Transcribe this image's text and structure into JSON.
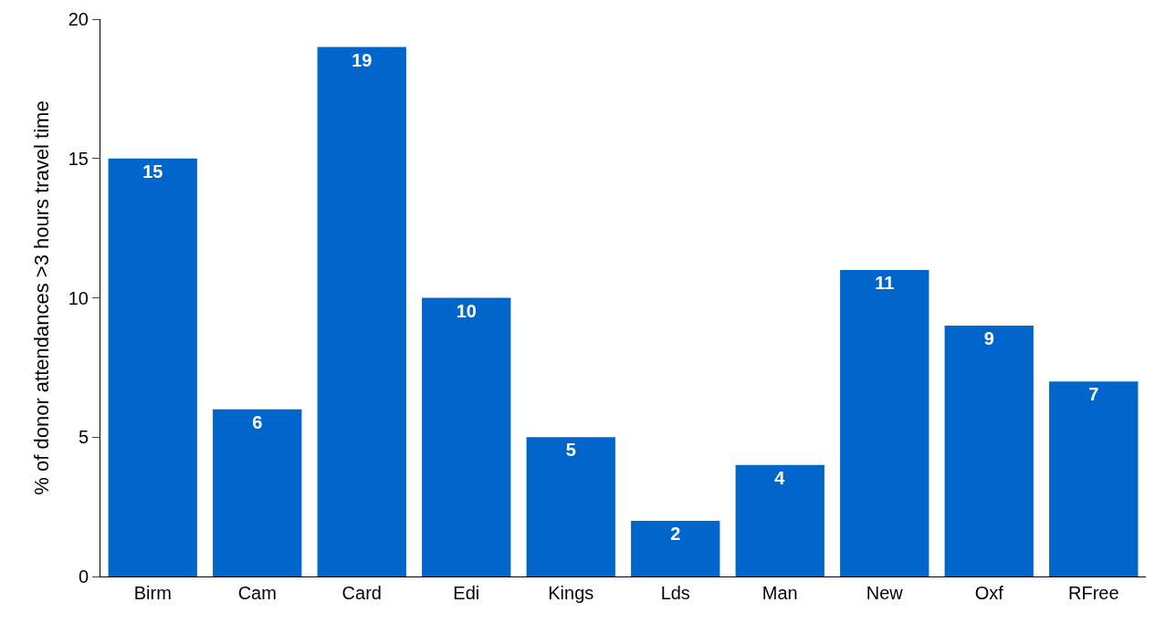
{
  "chart_data": {
    "type": "bar",
    "ylabel": "% of donor attendances >3 hours travel time",
    "categories": [
      "Birm",
      "Cam",
      "Card",
      "Edi",
      "Kings",
      "Lds",
      "Man",
      "New",
      "Oxf",
      "RFree"
    ],
    "values": [
      15,
      6,
      19,
      10,
      5,
      2,
      4,
      11,
      9,
      7
    ],
    "color": "#0066cc",
    "ylim": [
      0,
      20
    ],
    "yticks": [
      0,
      5,
      10,
      15,
      20
    ],
    "data_labels": true,
    "legend": false
  }
}
